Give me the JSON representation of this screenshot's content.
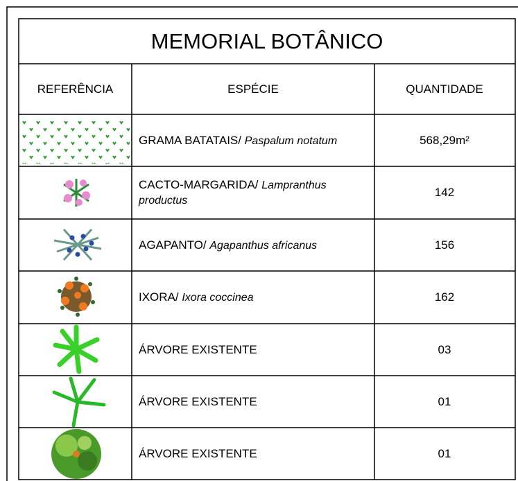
{
  "title": "MEMORIAL BOTÂNICO",
  "header": {
    "reference": "REFERÊNCIA",
    "species": "ESPÉCIE",
    "quantity": "QUANTIDADE"
  },
  "rows": [
    {
      "common": "GRAMA BATATAIS/",
      "scientific": "Paspalum notatum",
      "quantity": "568,29m²"
    },
    {
      "common": "CACTO-MARGARIDA/",
      "scientific": "Lampranthus productus",
      "quantity": "142"
    },
    {
      "common": "AGAPANTO/",
      "scientific": "Agapanthus africanus",
      "quantity": "156"
    },
    {
      "common": "IXORA/",
      "scientific": "Ixora coccinea",
      "quantity": "162"
    },
    {
      "common": "ÁRVORE EXISTENTE",
      "quantity": "03"
    },
    {
      "common": "ÁRVORE EXISTENTE",
      "quantity": "01"
    },
    {
      "common": "ÁRVORE EXISTENTE",
      "quantity": "01"
    }
  ]
}
